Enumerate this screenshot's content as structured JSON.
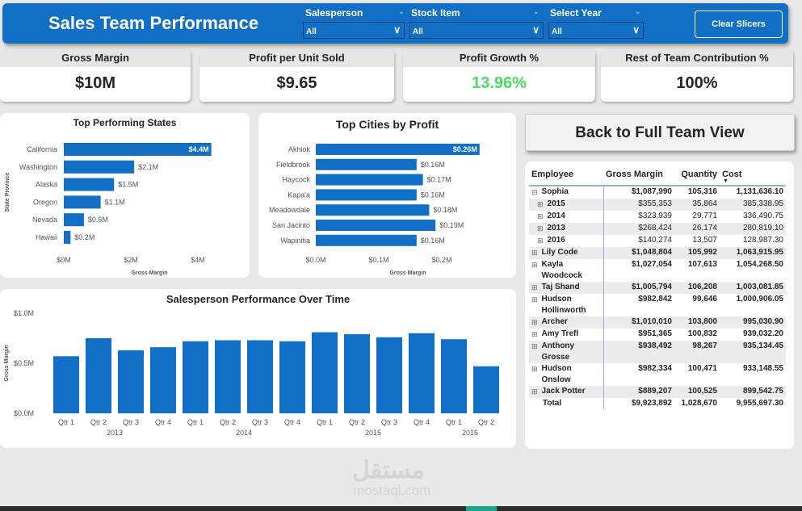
{
  "header": {
    "title": "Sales Team Performance",
    "clear_label": "Clear Slicers",
    "slicers": [
      {
        "label": "Salesperson",
        "value": "All"
      },
      {
        "label": "Stock Item",
        "value": "All"
      },
      {
        "label": "Select Year",
        "value": "All"
      }
    ]
  },
  "kpis": [
    {
      "label": "Gross Margin",
      "value": "$10M",
      "color": "#252423"
    },
    {
      "label": "Profit per Unit Sold",
      "value": "$9.65",
      "color": "#252423"
    },
    {
      "label": "Profit Growth %",
      "value": "13.96%",
      "color": "#4cd964"
    },
    {
      "label": "Rest of Team Contribution %",
      "value": "100%",
      "color": "#252423"
    }
  ],
  "back_label": "Back to Full Team View",
  "chart_data": [
    {
      "type": "bar",
      "title": "Top Performing States",
      "xlabel": "Gross Margin",
      "ylabel": "State Province",
      "categories": [
        "California",
        "Washington",
        "Alaska",
        "Oregon",
        "Nevada",
        "Hawaii"
      ],
      "values": [
        4.4,
        2.1,
        1.5,
        1.1,
        0.6,
        0.2
      ],
      "labels": [
        "$4.4M",
        "$2.1M",
        "$1.5M",
        "$1.1M",
        "$0.6M",
        "$0.2M"
      ],
      "ticks": [
        "$0M",
        "$2M",
        "$4M"
      ],
      "xlim": [
        0,
        4.4
      ]
    },
    {
      "type": "bar",
      "title": "Top Cities by Profit",
      "xlabel": "Gross Margin",
      "categories": [
        "Akhiok",
        "Fieldbrook",
        "Haycock",
        "Kapa'a",
        "Meadowdale",
        "San Jacinto",
        "Wapinitia"
      ],
      "values": [
        0.26,
        0.16,
        0.17,
        0.16,
        0.18,
        0.19,
        0.16
      ],
      "labels": [
        "$0.26M",
        "$0.16M",
        "$0.17M",
        "$0.16M",
        "$0.18M",
        "$0.19M",
        "$0.16M"
      ],
      "ticks": [
        "$0.0M",
        "$0.1M",
        "$0.2M"
      ],
      "xlim": [
        0,
        0.26
      ]
    },
    {
      "type": "bar",
      "title": "Salesperson Performance Over Time",
      "ylabel": "Gross Margin",
      "ylim": [
        0,
        1.0
      ],
      "yticks": [
        "$0.0M",
        "$0.5M",
        "$1.0M"
      ],
      "categories": [
        "Qtr 1",
        "Qtr 2",
        "Qtr 3",
        "Qtr 4",
        "Qtr 1",
        "Qtr 2",
        "Qtr 3",
        "Qtr 4",
        "Qtr 1",
        "Qtr 2",
        "Qtr 3",
        "Qtr 4",
        "Qtr 1",
        "Qtr 2"
      ],
      "years": [
        {
          "label": "2013",
          "count": 4
        },
        {
          "label": "2014",
          "count": 4
        },
        {
          "label": "2015",
          "count": 4
        },
        {
          "label": "2016",
          "count": 2
        }
      ],
      "values": [
        0.57,
        0.75,
        0.63,
        0.66,
        0.72,
        0.73,
        0.73,
        0.72,
        0.81,
        0.79,
        0.76,
        0.8,
        0.74,
        0.47
      ]
    }
  ],
  "table": {
    "headers": [
      "Employee",
      "Gross Margin",
      "Quantity",
      "Cost"
    ],
    "rows": [
      {
        "name": "Sophia",
        "gm": "$1,087,990",
        "qty": "105,316",
        "cost": "1,131,636.10",
        "exp": "minus"
      },
      {
        "name": "2015",
        "gm": "$355,353",
        "qty": "35,864",
        "cost": "385,338.95",
        "sub": true
      },
      {
        "name": "2014",
        "gm": "$323,939",
        "qty": "29,771",
        "cost": "336,490.75",
        "sub": true
      },
      {
        "name": "2013",
        "gm": "$268,424",
        "qty": "26,174",
        "cost": "280,819.10",
        "sub": true
      },
      {
        "name": "2016",
        "gm": "$140,274",
        "qty": "13,507",
        "cost": "128,987.30",
        "sub": true
      },
      {
        "name": "Lily Code",
        "gm": "$1,048,804",
        "qty": "105,992",
        "cost": "1,063,915.95"
      },
      {
        "name": "Kayla Woodcock",
        "gm": "$1,027,054",
        "qty": "107,613",
        "cost": "1,054,268.50"
      },
      {
        "name": "Taj Shand",
        "gm": "$1,005,794",
        "qty": "106,208",
        "cost": "1,003,081.85"
      },
      {
        "name": "Hudson Hollinworth",
        "gm": "$982,842",
        "qty": "99,646",
        "cost": "1,000,906.05"
      },
      {
        "name": "Archer",
        "gm": "$1,010,010",
        "qty": "103,800",
        "cost": "995,030.90"
      },
      {
        "name": "Amy Trefl",
        "gm": "$951,365",
        "qty": "100,832",
        "cost": "939,032.20"
      },
      {
        "name": "Anthony Grosse",
        "gm": "$938,492",
        "qty": "98,267",
        "cost": "935,134.45"
      },
      {
        "name": "Hudson Onslow",
        "gm": "$982,334",
        "qty": "100,471",
        "cost": "933,148.55"
      },
      {
        "name": "Jack Potter",
        "gm": "$889,207",
        "qty": "100,525",
        "cost": "899,542.75"
      }
    ],
    "total": {
      "name": "Total",
      "gm": "$9,923,892",
      "qty": "1,028,670",
      "cost": "9,955,697.30"
    }
  },
  "watermark": {
    "arabic": "مستقل",
    "latin": "mostaql.com"
  },
  "colors": {
    "bar": "#1170c5",
    "accent": "#4cd964"
  }
}
